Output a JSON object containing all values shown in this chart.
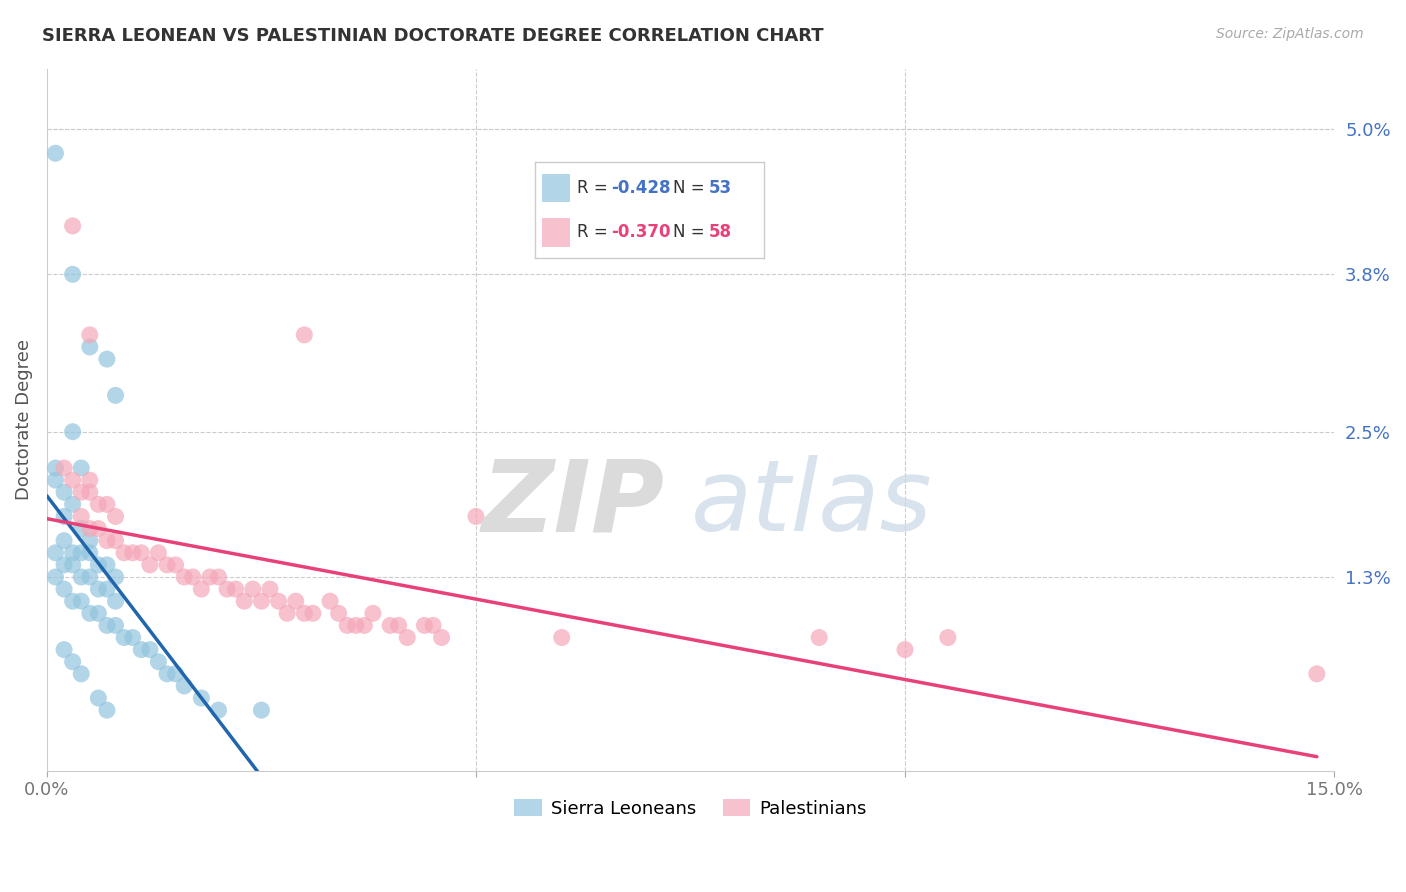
{
  "title": "SIERRA LEONEAN VS PALESTINIAN DOCTORATE DEGREE CORRELATION CHART",
  "source": "Source: ZipAtlas.com",
  "ylabel": "Doctorate Degree",
  "ytick_labels": [
    "5.0%",
    "3.8%",
    "2.5%",
    "1.3%"
  ],
  "ytick_values": [
    0.05,
    0.038,
    0.025,
    0.013
  ],
  "xlim": [
    0.0,
    0.15
  ],
  "ylim": [
    -0.003,
    0.055
  ],
  "blue_color": "#92c5de",
  "pink_color": "#f4a7b9",
  "blue_line_color": "#2166ac",
  "pink_line_color": "#e8417a",
  "legend_label_blue": "Sierra Leoneans",
  "legend_label_pink": "Palestinians",
  "blue_scatter": [
    [
      0.001,
      0.048
    ],
    [
      0.005,
      0.032
    ],
    [
      0.008,
      0.028
    ],
    [
      0.003,
      0.038
    ],
    [
      0.007,
      0.031
    ],
    [
      0.001,
      0.022
    ],
    [
      0.002,
      0.02
    ],
    [
      0.003,
      0.025
    ],
    [
      0.004,
      0.022
    ],
    [
      0.002,
      0.018
    ],
    [
      0.003,
      0.019
    ],
    [
      0.004,
      0.017
    ],
    [
      0.005,
      0.016
    ],
    [
      0.001,
      0.021
    ],
    [
      0.002,
      0.016
    ],
    [
      0.003,
      0.015
    ],
    [
      0.004,
      0.015
    ],
    [
      0.005,
      0.015
    ],
    [
      0.006,
      0.014
    ],
    [
      0.007,
      0.014
    ],
    [
      0.008,
      0.013
    ],
    [
      0.001,
      0.015
    ],
    [
      0.002,
      0.014
    ],
    [
      0.003,
      0.014
    ],
    [
      0.004,
      0.013
    ],
    [
      0.005,
      0.013
    ],
    [
      0.006,
      0.012
    ],
    [
      0.007,
      0.012
    ],
    [
      0.008,
      0.011
    ],
    [
      0.001,
      0.013
    ],
    [
      0.002,
      0.012
    ],
    [
      0.003,
      0.011
    ],
    [
      0.004,
      0.011
    ],
    [
      0.005,
      0.01
    ],
    [
      0.006,
      0.01
    ],
    [
      0.007,
      0.009
    ],
    [
      0.008,
      0.009
    ],
    [
      0.009,
      0.008
    ],
    [
      0.01,
      0.008
    ],
    [
      0.011,
      0.007
    ],
    [
      0.012,
      0.007
    ],
    [
      0.013,
      0.006
    ],
    [
      0.014,
      0.005
    ],
    [
      0.015,
      0.005
    ],
    [
      0.016,
      0.004
    ],
    [
      0.002,
      0.007
    ],
    [
      0.003,
      0.006
    ],
    [
      0.004,
      0.005
    ],
    [
      0.006,
      0.003
    ],
    [
      0.007,
      0.002
    ],
    [
      0.018,
      0.003
    ],
    [
      0.02,
      0.002
    ],
    [
      0.025,
      0.002
    ]
  ],
  "pink_scatter": [
    [
      0.003,
      0.042
    ],
    [
      0.005,
      0.033
    ],
    [
      0.03,
      0.033
    ],
    [
      0.002,
      0.022
    ],
    [
      0.003,
      0.021
    ],
    [
      0.004,
      0.02
    ],
    [
      0.005,
      0.02
    ],
    [
      0.006,
      0.019
    ],
    [
      0.007,
      0.019
    ],
    [
      0.008,
      0.018
    ],
    [
      0.004,
      0.018
    ],
    [
      0.005,
      0.017
    ],
    [
      0.006,
      0.017
    ],
    [
      0.007,
      0.016
    ],
    [
      0.008,
      0.016
    ],
    [
      0.009,
      0.015
    ],
    [
      0.01,
      0.015
    ],
    [
      0.011,
      0.015
    ],
    [
      0.012,
      0.014
    ],
    [
      0.013,
      0.015
    ],
    [
      0.014,
      0.014
    ],
    [
      0.015,
      0.014
    ],
    [
      0.016,
      0.013
    ],
    [
      0.017,
      0.013
    ],
    [
      0.018,
      0.012
    ],
    [
      0.019,
      0.013
    ],
    [
      0.02,
      0.013
    ],
    [
      0.021,
      0.012
    ],
    [
      0.005,
      0.021
    ],
    [
      0.022,
      0.012
    ],
    [
      0.023,
      0.011
    ],
    [
      0.024,
      0.012
    ],
    [
      0.025,
      0.011
    ],
    [
      0.026,
      0.012
    ],
    [
      0.027,
      0.011
    ],
    [
      0.028,
      0.01
    ],
    [
      0.029,
      0.011
    ],
    [
      0.03,
      0.01
    ],
    [
      0.031,
      0.01
    ],
    [
      0.033,
      0.011
    ],
    [
      0.034,
      0.01
    ],
    [
      0.035,
      0.009
    ],
    [
      0.036,
      0.009
    ],
    [
      0.037,
      0.009
    ],
    [
      0.038,
      0.01
    ],
    [
      0.04,
      0.009
    ],
    [
      0.041,
      0.009
    ],
    [
      0.042,
      0.008
    ],
    [
      0.044,
      0.009
    ],
    [
      0.045,
      0.009
    ],
    [
      0.046,
      0.008
    ],
    [
      0.05,
      0.018
    ],
    [
      0.06,
      0.008
    ],
    [
      0.09,
      0.008
    ],
    [
      0.1,
      0.007
    ],
    [
      0.105,
      0.008
    ],
    [
      0.148,
      0.005
    ]
  ]
}
